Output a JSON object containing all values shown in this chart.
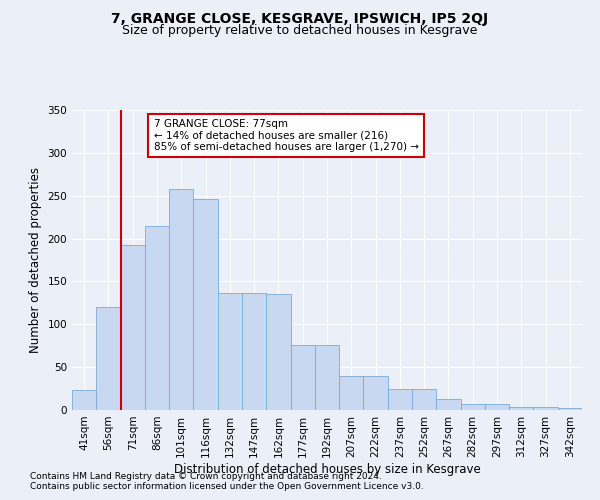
{
  "title": "7, GRANGE CLOSE, KESGRAVE, IPSWICH, IP5 2QJ",
  "subtitle": "Size of property relative to detached houses in Kesgrave",
  "xlabel": "Distribution of detached houses by size in Kesgrave",
  "ylabel": "Number of detached properties",
  "categories": [
    "41sqm",
    "56sqm",
    "71sqm",
    "86sqm",
    "101sqm",
    "116sqm",
    "132sqm",
    "147sqm",
    "162sqm",
    "177sqm",
    "192sqm",
    "207sqm",
    "222sqm",
    "237sqm",
    "252sqm",
    "267sqm",
    "282sqm",
    "297sqm",
    "312sqm",
    "327sqm",
    "342sqm"
  ],
  "values": [
    23,
    120,
    193,
    215,
    258,
    246,
    136,
    136,
    135,
    76,
    76,
    40,
    40,
    25,
    25,
    13,
    7,
    7,
    4,
    4,
    2
  ],
  "bar_color": "#c8d8f0",
  "bar_edge_color": "#7aaad8",
  "vline_color": "#cc0000",
  "vline_x_idx": 2,
  "annotation_text": "7 GRANGE CLOSE: 77sqm\n← 14% of detached houses are smaller (216)\n85% of semi-detached houses are larger (1,270) →",
  "annotation_box_color": "#ffffff",
  "annotation_box_edge": "#cc0000",
  "ylim": [
    0,
    350
  ],
  "yticks": [
    0,
    50,
    100,
    150,
    200,
    250,
    300,
    350
  ],
  "bg_color": "#eaeff8",
  "plot_bg": "#eaeff8",
  "footer_line1": "Contains HM Land Registry data © Crown copyright and database right 2024.",
  "footer_line2": "Contains public sector information licensed under the Open Government Licence v3.0.",
  "title_fontsize": 10,
  "subtitle_fontsize": 9,
  "axis_label_fontsize": 8.5,
  "tick_fontsize": 7.5,
  "annotation_fontsize": 7.5,
  "footer_fontsize": 6.5
}
